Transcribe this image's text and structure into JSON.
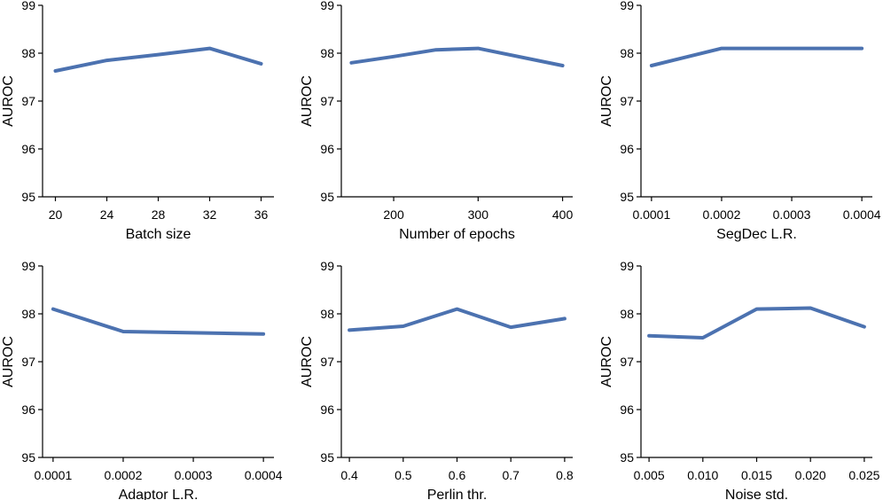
{
  "colors": {
    "series": "#4c72b0",
    "axis": "#000000"
  },
  "chart_data": [
    {
      "type": "line",
      "xlabel": "Batch size",
      "ylabel": "AUROC",
      "x": [
        20,
        24,
        28,
        32,
        36
      ],
      "y": [
        97.63,
        97.85,
        97.97,
        98.1,
        97.78
      ],
      "xlim": [
        19,
        37
      ],
      "ylim": [
        95,
        99
      ],
      "xticks": [
        20,
        24,
        28,
        32,
        36
      ],
      "xtick_labels": [
        "20",
        "24",
        "28",
        "32",
        "36"
      ],
      "yticks": [
        95,
        96,
        97,
        98,
        99
      ],
      "ytick_labels": [
        "95",
        "96",
        "97",
        "98",
        "99"
      ]
    },
    {
      "type": "line",
      "xlabel": "Number of epochs",
      "ylabel": "AUROC",
      "x": [
        150,
        200,
        250,
        300,
        400
      ],
      "y": [
        97.8,
        97.93,
        98.07,
        98.1,
        97.74
      ],
      "xlim": [
        138,
        412
      ],
      "ylim": [
        95,
        99
      ],
      "xticks": [
        200,
        300,
        400
      ],
      "xtick_labels": [
        "200",
        "300",
        "400"
      ],
      "yticks": [
        95,
        96,
        97,
        98,
        99
      ],
      "ytick_labels": [
        "95",
        "96",
        "97",
        "98",
        "99"
      ]
    },
    {
      "type": "line",
      "xlabel": "SegDec L.R.",
      "ylabel": "AUROC",
      "x": [
        0.0001,
        0.0002,
        0.0003,
        0.0004
      ],
      "y": [
        97.74,
        98.1,
        98.1,
        98.1
      ],
      "xlim": [
        8.5e-05,
        0.000415
      ],
      "ylim": [
        95,
        99
      ],
      "xticks": [
        0.0001,
        0.0002,
        0.0003,
        0.0004
      ],
      "xtick_labels": [
        "0.0001",
        "0.0002",
        "0.0003",
        "0.0004"
      ],
      "yticks": [
        95,
        96,
        97,
        98,
        99
      ],
      "ytick_labels": [
        "95",
        "96",
        "97",
        "98",
        "99"
      ]
    },
    {
      "type": "line",
      "xlabel": "Adaptor L.R.",
      "ylabel": "AUROC",
      "x": [
        0.0001,
        0.0002,
        0.0004
      ],
      "y": [
        98.1,
        97.63,
        97.58
      ],
      "xlim": [
        8.5e-05,
        0.000415
      ],
      "ylim": [
        95,
        99
      ],
      "xticks": [
        0.0001,
        0.0002,
        0.0003,
        0.0004
      ],
      "xtick_labels": [
        "0.0001",
        "0.0002",
        "0.0003",
        "0.0004"
      ],
      "yticks": [
        95,
        96,
        97,
        98,
        99
      ],
      "ytick_labels": [
        "95",
        "96",
        "97",
        "98",
        "99"
      ]
    },
    {
      "type": "line",
      "xlabel": "Perlin thr.",
      "ylabel": "AUROC",
      "x": [
        0.4,
        0.5,
        0.6,
        0.7,
        0.8
      ],
      "y": [
        97.66,
        97.74,
        98.1,
        97.72,
        97.9
      ],
      "xlim": [
        0.385,
        0.815
      ],
      "ylim": [
        95,
        99
      ],
      "xticks": [
        0.4,
        0.5,
        0.6,
        0.7,
        0.8
      ],
      "xtick_labels": [
        "0.4",
        "0.5",
        "0.6",
        "0.7",
        "0.8"
      ],
      "yticks": [
        95,
        96,
        97,
        98,
        99
      ],
      "ytick_labels": [
        "95",
        "96",
        "97",
        "98",
        "99"
      ]
    },
    {
      "type": "line",
      "xlabel": "Noise std.",
      "ylabel": "AUROC",
      "x": [
        0.005,
        0.01,
        0.015,
        0.02,
        0.025
      ],
      "y": [
        97.54,
        97.5,
        98.1,
        98.12,
        97.73
      ],
      "xlim": [
        0.00425,
        0.02575
      ],
      "ylim": [
        95,
        99
      ],
      "xticks": [
        0.005,
        0.01,
        0.015,
        0.02,
        0.025
      ],
      "xtick_labels": [
        "0.005",
        "0.010",
        "0.015",
        "0.020",
        "0.025"
      ],
      "yticks": [
        95,
        96,
        97,
        98,
        99
      ],
      "ytick_labels": [
        "95",
        "96",
        "97",
        "98",
        "99"
      ]
    }
  ]
}
